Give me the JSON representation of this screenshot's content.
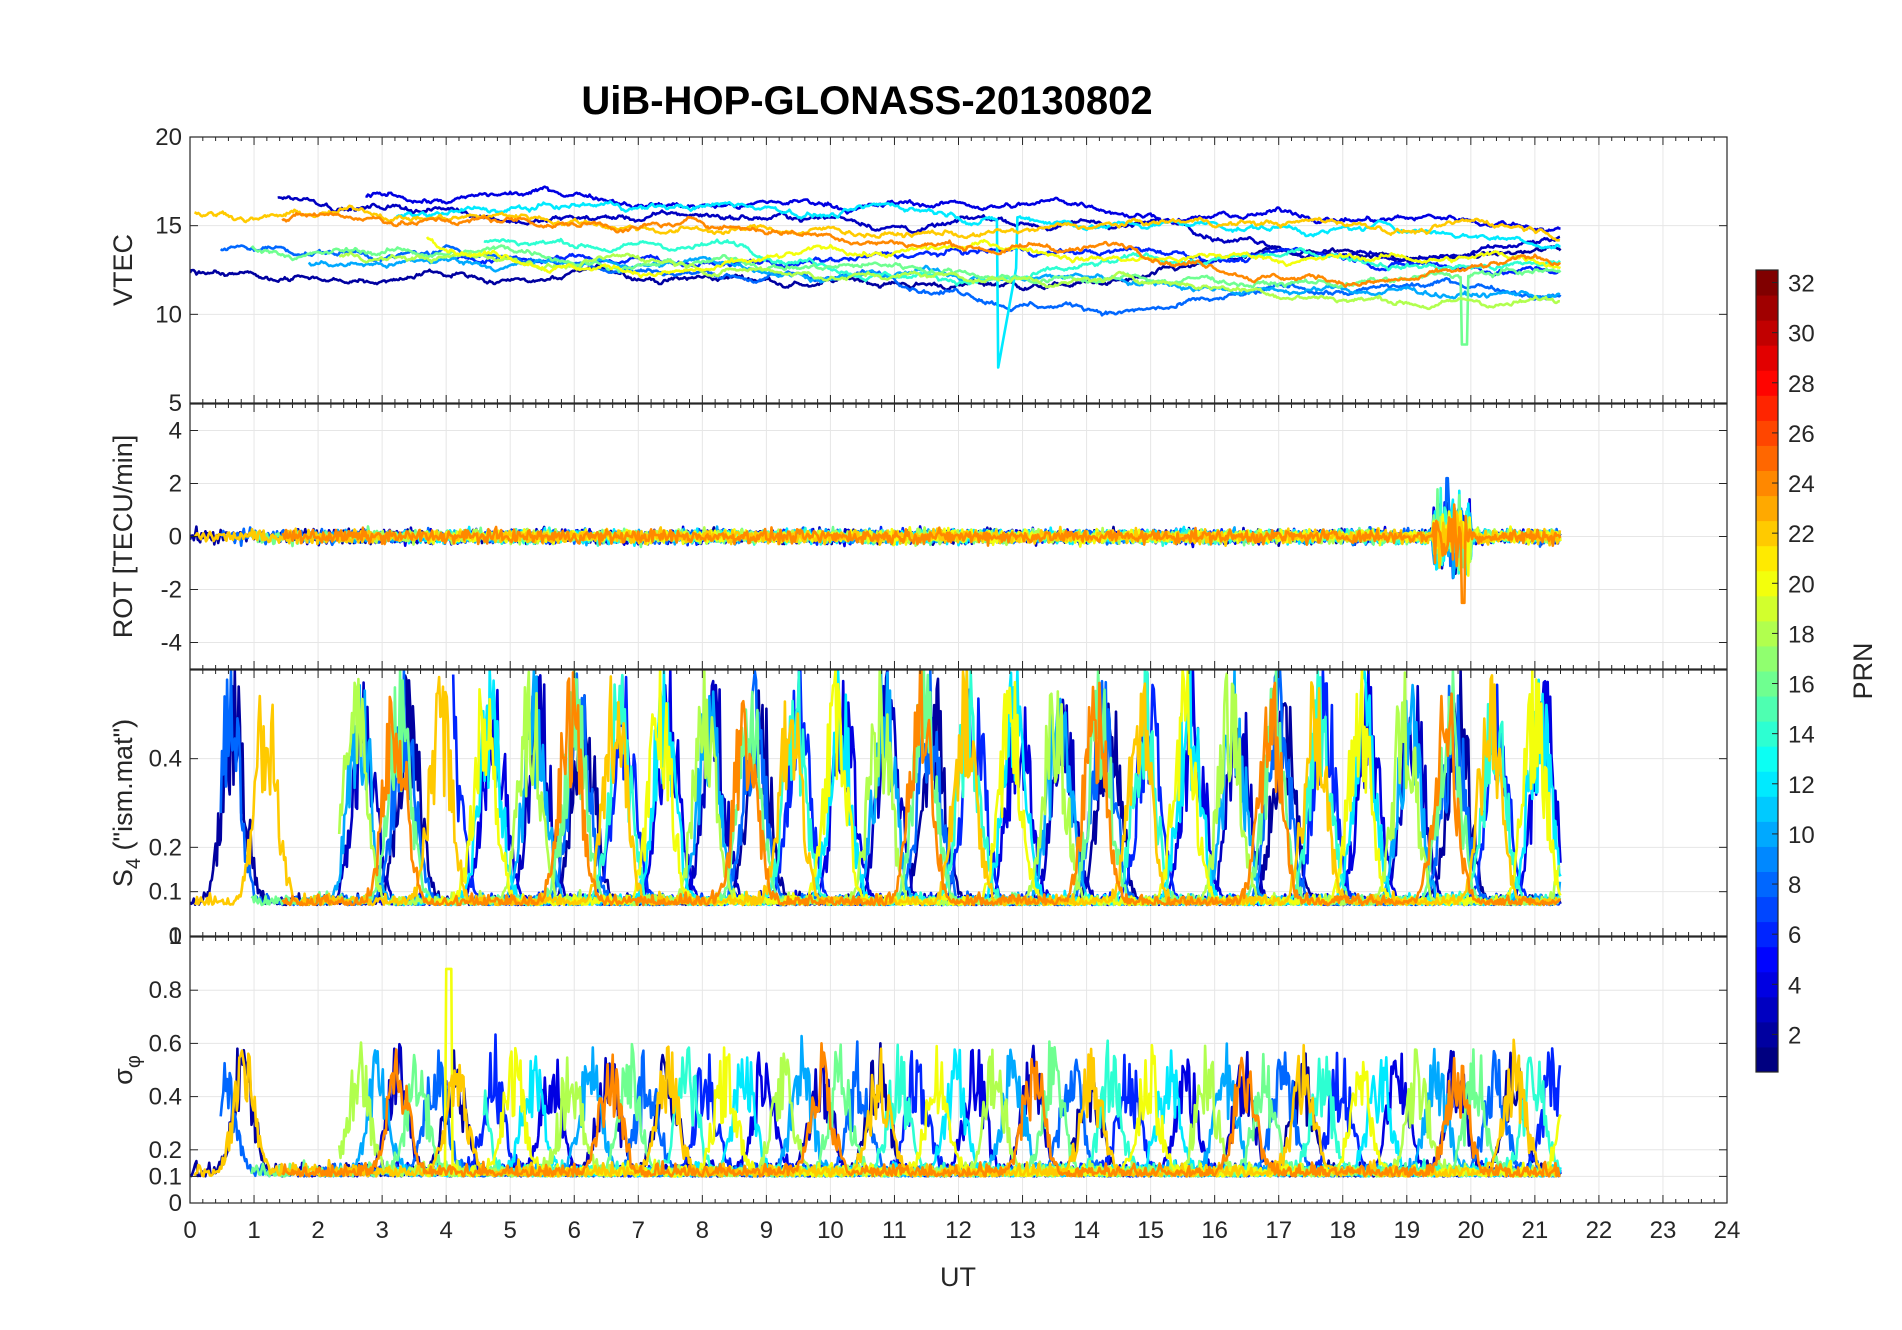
{
  "chart_data": {
    "type": "line",
    "title": "UiB-HOP-GLONASS-20130802",
    "xlabel": "UT",
    "xlim": [
      0,
      24
    ],
    "x_ticks": [
      "0",
      "1",
      "2",
      "3",
      "4",
      "5",
      "6",
      "7",
      "8",
      "9",
      "10",
      "11",
      "12",
      "13",
      "14",
      "15",
      "16",
      "17",
      "18",
      "19",
      "20",
      "21",
      "22",
      "23",
      "24"
    ],
    "data_end_ut": 21.4,
    "panels": [
      {
        "id": "vtec",
        "ylabel": "VTEC",
        "ylim": [
          5,
          20
        ],
        "y_ticks": [
          "5",
          "10",
          "15",
          "20"
        ],
        "series_summary": "Per-PRN VTEC traces, mostly 11-19 TECU; dips to ~6.6 near 12.7 UT and ~8.3 near 19.9 UT"
      },
      {
        "id": "rot",
        "ylabel": "ROT [TECU/min]",
        "ylim": [
          -5,
          5
        ],
        "y_ticks": [
          "-4",
          "-2",
          "0",
          "2",
          "4"
        ],
        "series_summary": "Rate of TEC mostly within +/-0.8; spikes to ~2.2 and ~-2.5 around 19.6-19.9 UT"
      },
      {
        "id": "s4",
        "ylabel": "S4 (\"ism.mat\")",
        "ylabel_main": "S",
        "ylabel_sub": "4",
        "ylabel_rest": " (\"ism.mat\")",
        "ylim": [
          0,
          0.6
        ],
        "y_ticks": [
          "0",
          "0.1",
          "0.2",
          "0.4"
        ],
        "extra_tick": "1",
        "series_summary": "S4 baseline ~0.06-0.1 with bursts up to ~0.6"
      },
      {
        "id": "sigma",
        "ylabel": "σφ",
        "ylabel_main": "σ",
        "ylabel_sub": "φ",
        "ylim": [
          0,
          1
        ],
        "y_ticks": [
          "0",
          "0.1",
          "0.2",
          "0.4",
          "0.6",
          "0.8"
        ],
        "series_summary": "Phase scintillation baseline ~0.08-0.15 with spikes, max ~0.88 at 4.05 UT"
      }
    ],
    "colorbar": {
      "label": "PRN",
      "range": [
        1,
        32
      ],
      "ticks": [
        "2",
        "4",
        "6",
        "8",
        "10",
        "12",
        "14",
        "16",
        "18",
        "20",
        "22",
        "24",
        "26",
        "28",
        "30",
        "32"
      ],
      "colormap": "jet"
    },
    "prn_traces": [
      {
        "prn": 2
      },
      {
        "prn": 3
      },
      {
        "prn": 4
      },
      {
        "prn": 6
      },
      {
        "prn": 8
      },
      {
        "prn": 10
      },
      {
        "prn": 12
      },
      {
        "prn": 14
      },
      {
        "prn": 16
      },
      {
        "prn": 18
      },
      {
        "prn": 20
      },
      {
        "prn": 22
      },
      {
        "prn": 24
      }
    ]
  }
}
